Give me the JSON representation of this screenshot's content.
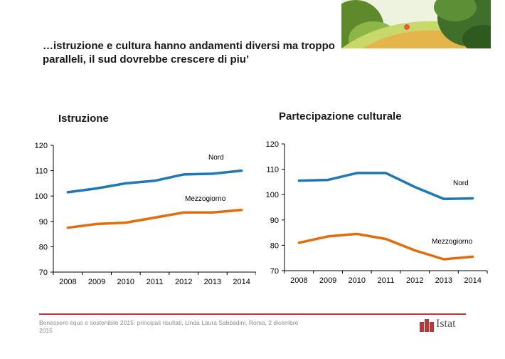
{
  "slide": {
    "title": "…istruzione e cultura hanno andamenti diversi ma troppo paralleli, il sud dovrebbe crescere di piu’",
    "footer": "Benessere equo e sostenibile 2015: principali risultati, Linda Laura Sabbadini, Roma, 2 dicembre 2015",
    "logo_text": "Istat"
  },
  "colors": {
    "nord": "#1f77b4",
    "mezzogiorno": "#e36c0a",
    "accent": "#b23a3a"
  },
  "chart_data": [
    {
      "type": "line",
      "title": "Istruzione",
      "categories": [
        "2008",
        "2009",
        "2010",
        "2011",
        "2012",
        "2013",
        "2014"
      ],
      "ylim": [
        70,
        120
      ],
      "yticks": [
        70,
        80,
        90,
        100,
        110,
        120
      ],
      "grid": false,
      "series": [
        {
          "name": "Nord",
          "values": [
            101.5,
            103,
            105,
            106,
            108.5,
            108.8,
            110
          ]
        },
        {
          "name": "Mezzogiorno",
          "values": [
            87.5,
            89,
            89.5,
            91.5,
            93.5,
            93.5,
            94.5
          ]
        }
      ]
    },
    {
      "type": "line",
      "title": "Partecipazione culturale",
      "categories": [
        "2008",
        "2009",
        "2010",
        "2011",
        "2012",
        "2013",
        "2014"
      ],
      "ylim": [
        70,
        120
      ],
      "yticks": [
        70,
        80,
        90,
        100,
        110,
        120
      ],
      "grid": false,
      "series": [
        {
          "name": "Nord",
          "values": [
            105.5,
            105.8,
            108.5,
            108.5,
            103,
            98.3,
            98.5
          ]
        },
        {
          "name": "Mezzogiorno",
          "values": [
            81,
            83.5,
            84.5,
            82.5,
            78,
            74.5,
            75.5
          ]
        }
      ]
    }
  ]
}
